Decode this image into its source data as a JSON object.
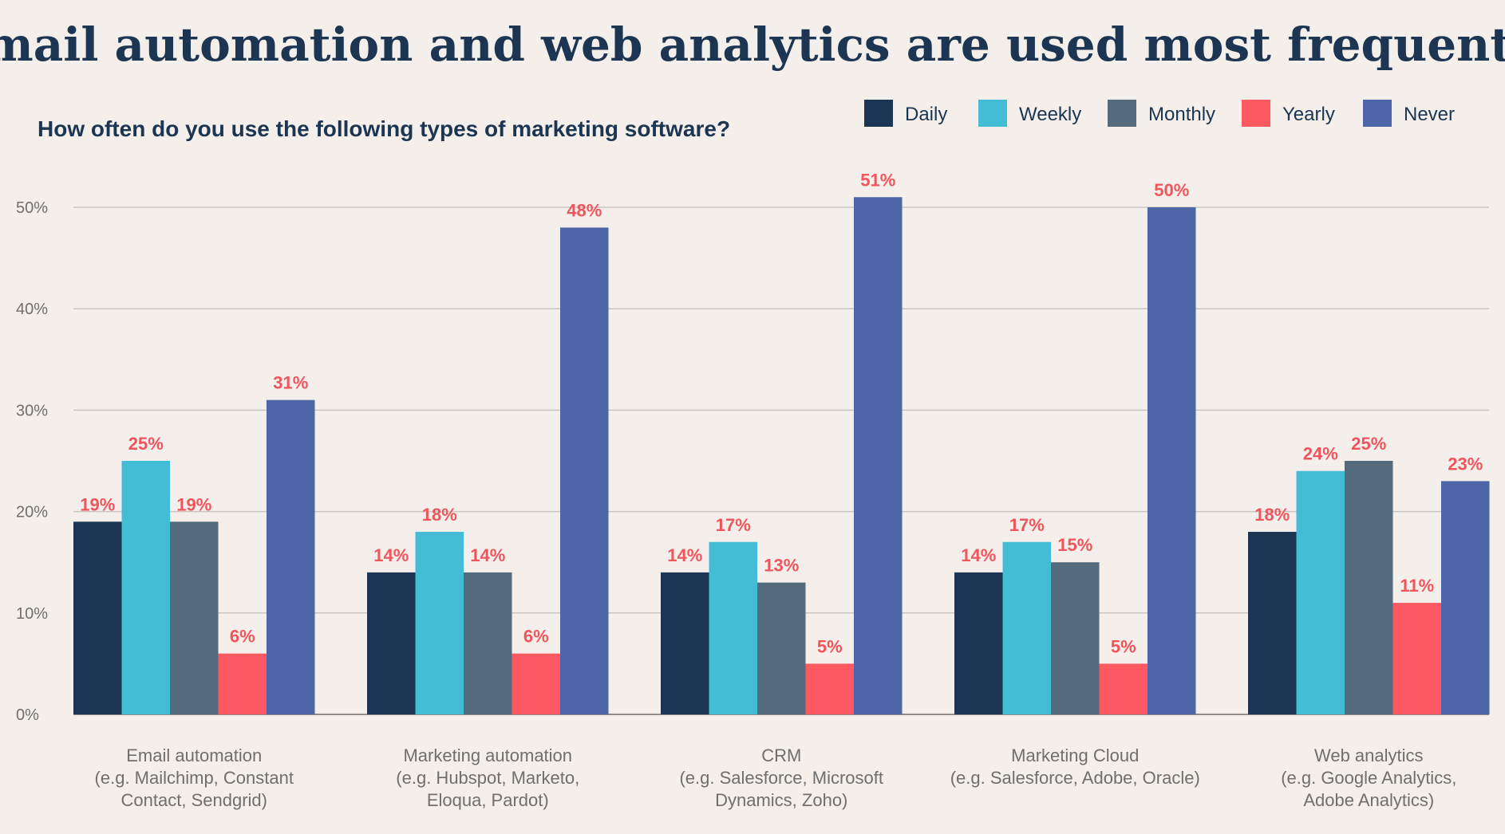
{
  "chart_data": {
    "type": "bar",
    "title": "Email automation and web analytics are used most frequently",
    "subtitle": "How often do you use the following types of marketing software?",
    "categories": [
      [
        "Email automation",
        "(e.g. Mailchimp, Constant",
        "Contact, Sendgrid)"
      ],
      [
        "Marketing automation",
        "(e.g. Hubspot, Marketo,",
        "Eloqua, Pardot)"
      ],
      [
        "CRM",
        "(e.g. Salesforce, Microsoft",
        "Dynamics, Zoho)"
      ],
      [
        "Marketing Cloud",
        "(e.g. Salesforce, Adobe, Oracle)"
      ],
      [
        "Web analytics",
        "(e.g. Google Analytics,",
        "Adobe Analytics)"
      ]
    ],
    "series": [
      {
        "name": "Daily",
        "color": "#1b3552",
        "values": [
          19,
          14,
          14,
          14,
          18
        ],
        "labels": [
          "19%",
          "14%",
          "14%",
          "14%",
          "18%"
        ]
      },
      {
        "name": "Weekly",
        "color": "#43bdd6",
        "values": [
          25,
          18,
          17,
          17,
          24
        ],
        "labels": [
          "25%",
          "18%",
          "17%",
          "17%",
          "24%"
        ]
      },
      {
        "name": "Monthly",
        "color": "#546a7d",
        "values": [
          19,
          14,
          13,
          15,
          25
        ],
        "labels": [
          "19%",
          "14%",
          "13%",
          "15%",
          "25%"
        ]
      },
      {
        "name": "Yearly",
        "color": "#fd5963",
        "values": [
          6,
          6,
          5,
          5,
          11
        ],
        "labels": [
          "6%",
          "6%",
          "5%",
          "5%",
          "11%"
        ]
      },
      {
        "name": "Never",
        "color": "#4e66a8",
        "values": [
          31,
          48,
          51,
          50,
          23
        ],
        "labels": [
          "31%",
          "48%",
          "51%",
          "50%",
          "23%"
        ]
      }
    ],
    "yticks": [
      0,
      10,
      20,
      30,
      40,
      50
    ],
    "ytick_labels": [
      "0%",
      "10%",
      "20%",
      "30%",
      "40%",
      "50%"
    ],
    "ylim": [
      0,
      50
    ],
    "grid": true,
    "legend_position": "top-right",
    "xlabel": "",
    "ylabel": ""
  }
}
